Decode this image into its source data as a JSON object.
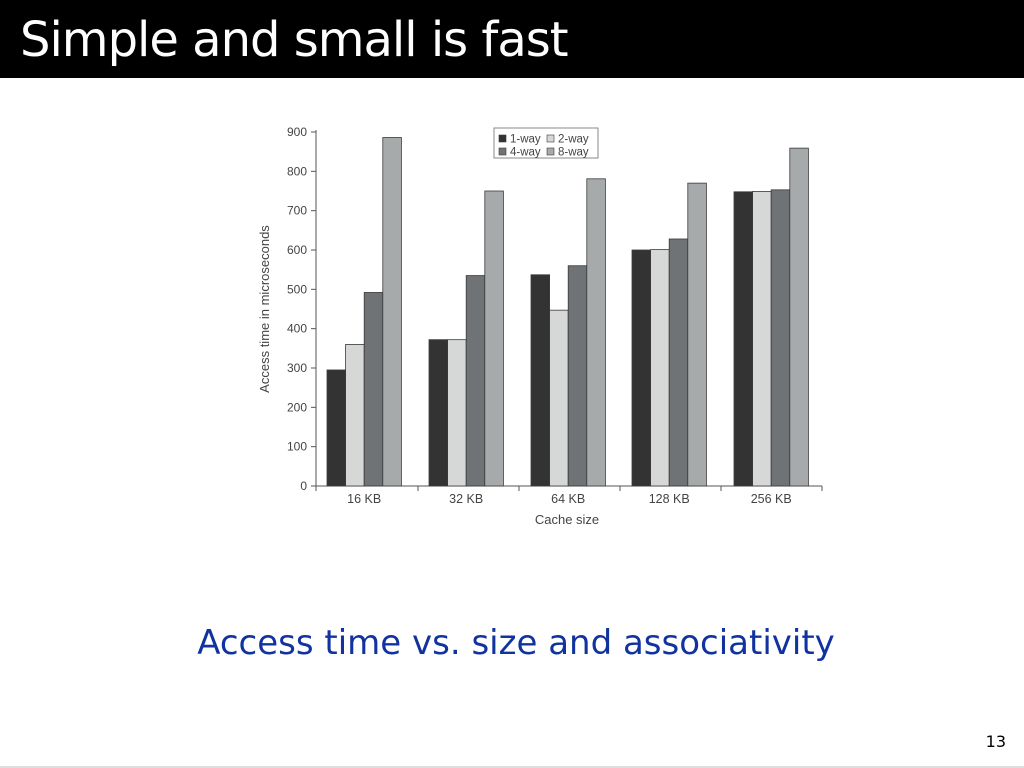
{
  "slide": {
    "title": "Simple and small is fast",
    "caption": "Access time vs. size and associativity",
    "page_number": "13"
  },
  "chart_data": {
    "type": "bar",
    "xlabel": "Cache size",
    "ylabel": "Access time in microseconds",
    "ylim": [
      0,
      900
    ],
    "yticks": [
      0,
      100,
      200,
      300,
      400,
      500,
      600,
      700,
      800,
      900
    ],
    "categories": [
      "16 KB",
      "32 KB",
      "64 KB",
      "128 KB",
      "256 KB"
    ],
    "series": [
      {
        "name": "1-way",
        "color": "#333333",
        "values": [
          295,
          372,
          537,
          600,
          748
        ]
      },
      {
        "name": "2-way",
        "color": "#d6d8d8",
        "values": [
          360,
          372,
          447,
          601,
          749
        ]
      },
      {
        "name": "4-way",
        "color": "#707375",
        "values": [
          492,
          535,
          560,
          628,
          753
        ]
      },
      {
        "name": "8-way",
        "color": "#a7aaab",
        "values": [
          886,
          750,
          781,
          770,
          859
        ]
      }
    ],
    "legend_position": "top-right",
    "grid": false
  }
}
